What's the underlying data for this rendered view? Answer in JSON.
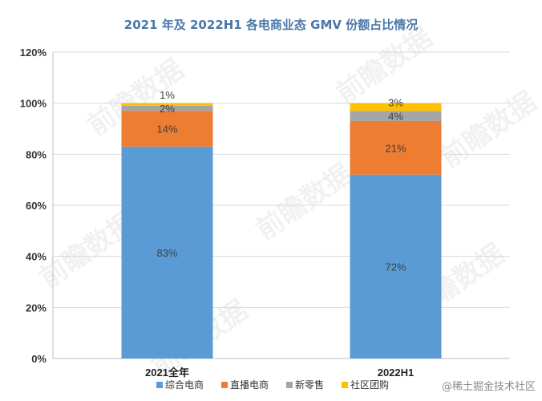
{
  "chart_data": {
    "type": "bar",
    "stacked": true,
    "title": "2021 年及 2022H1 各电商业态 GMV 份额占比情况",
    "categories": [
      "2021全年",
      "2022H1"
    ],
    "series": [
      {
        "name": "综合电商",
        "color": "#5b9bd5",
        "values": [
          83,
          72
        ],
        "labels": [
          "83%",
          "72%"
        ]
      },
      {
        "name": "直播电商",
        "color": "#ed7d31",
        "values": [
          14,
          21
        ],
        "labels": [
          "14%",
          "21%"
        ]
      },
      {
        "name": "新零售",
        "color": "#a5a5a5",
        "values": [
          2,
          4
        ],
        "labels": [
          "2%",
          "4%"
        ]
      },
      {
        "name": "社区团购",
        "color": "#ffc000",
        "values": [
          1,
          3
        ],
        "labels": [
          "1%",
          "3%"
        ]
      }
    ],
    "ylim": [
      0,
      120
    ],
    "yticks": [
      0,
      20,
      40,
      60,
      80,
      100,
      120
    ],
    "ytick_labels": [
      "0%",
      "20%",
      "40%",
      "60%",
      "80%",
      "100%",
      "120%"
    ],
    "xlabel": "",
    "ylabel": "",
    "grid": true,
    "legend": "bottom"
  },
  "watermark": {
    "text": "@稀土掘金技术社区",
    "background_text": "前瞻数据"
  }
}
